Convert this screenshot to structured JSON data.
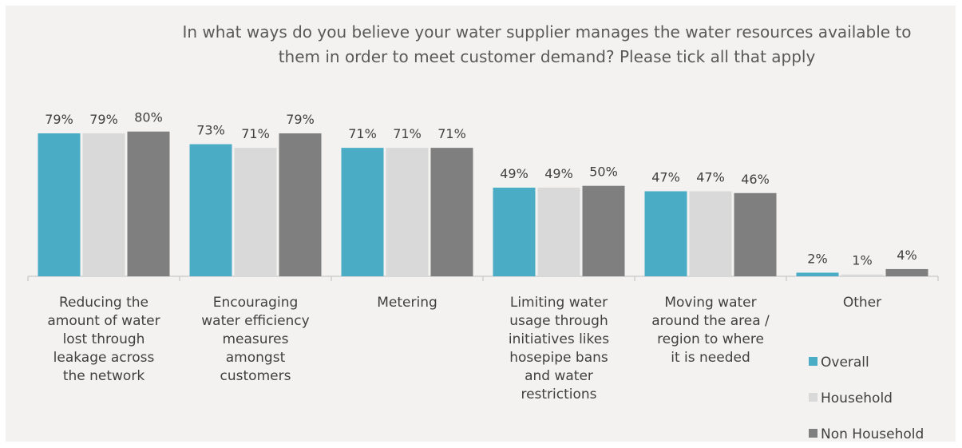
{
  "chart_data": {
    "type": "bar",
    "title": "In what ways do you believe your water supplier manages the water resources available to them in order to meet customer demand? Please tick all that apply",
    "categories": [
      "Reducing the amount of water lost through leakage across the network",
      "Encouraging water efficiency measures amongst customers",
      "Metering",
      "Limiting water usage through initiatives likes hosepipe bans and water restrictions",
      "Moving water around the area / region to where it is needed",
      "Other"
    ],
    "series": [
      {
        "name": "Overall",
        "color": "#4bacc6",
        "values": [
          79,
          73,
          71,
          49,
          47,
          2
        ],
        "value_labels": [
          "79%",
          "73%",
          "71%",
          "49%",
          "47%",
          "2%"
        ]
      },
      {
        "name": "Household",
        "color": "#d9d9d9",
        "values": [
          79,
          71,
          71,
          49,
          47,
          1
        ],
        "value_labels": [
          "79%",
          "71%",
          "71%",
          "49%",
          "47%",
          "1%"
        ]
      },
      {
        "name": "Non Household",
        "color": "#7f7f7f",
        "values": [
          80,
          79,
          71,
          50,
          46,
          4
        ],
        "value_labels": [
          "80%",
          "79%",
          "71%",
          "50%",
          "46%",
          "4%"
        ]
      }
    ],
    "ylim": [
      0,
      100
    ],
    "legend": "right"
  }
}
